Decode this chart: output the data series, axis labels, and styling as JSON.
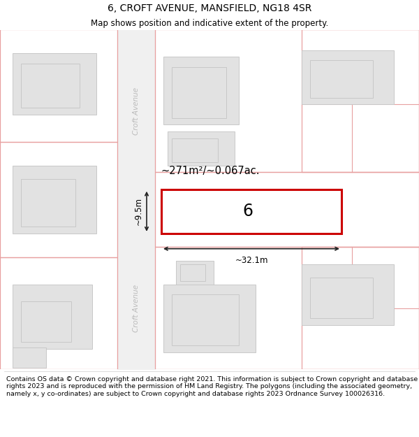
{
  "title": "6, CROFT AVENUE, MANSFIELD, NG18 4SR",
  "subtitle": "Map shows position and indicative extent of the property.",
  "footer": "Contains OS data © Crown copyright and database right 2021. This information is subject to Crown copyright and database rights 2023 and is reproduced with the permission of HM Land Registry. The polygons (including the associated geometry, namely x, y co-ordinates) are subject to Crown copyright and database rights 2023 Ordnance Survey 100026316.",
  "bg_color": "#ffffff",
  "map_bg": "#f8f8f8",
  "building_fill": "#e2e2e2",
  "building_edge": "#c8c8c8",
  "boundary_color": "#e8a0a0",
  "highlight_fill": "#ffffff",
  "highlight_edge": "#cc0000",
  "road_fill": "#f0f0f0",
  "road_edge": "#d8d8d8",
  "dim_color": "#222222",
  "area_text": "~271m²/~0.067ac.",
  "number_label": "6",
  "width_label": "~32.1m",
  "height_label": "~9.5m",
  "street_label": "Croft Avenue",
  "street_color": "#bbbbbb"
}
